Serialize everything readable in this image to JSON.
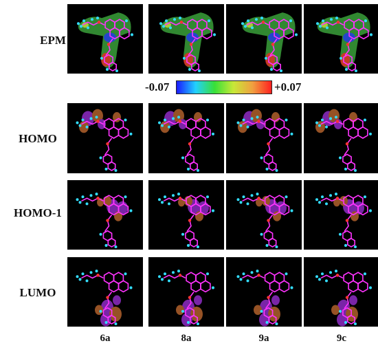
{
  "row_labels": [
    "EPM",
    "HOMO",
    "HOMO-1",
    "LUMO"
  ],
  "column_labels": [
    "6a",
    "8a",
    "9a",
    "9c"
  ],
  "color_scale": {
    "min_label": "-0.07",
    "max_label": "+0.07",
    "gradient": [
      "#1a1aff",
      "#22d0ff",
      "#38e038",
      "#c8e838",
      "#f0a040",
      "#ff2020"
    ]
  },
  "colors": {
    "panel_background": "#000000",
    "bond": "#ff33ff",
    "atom_h": "#33ddff",
    "atom_o": "#ff3333",
    "lobe_positive": "#9b30d6",
    "lobe_negative": "#c06a30",
    "epm_surface": "#3aa03a"
  }
}
